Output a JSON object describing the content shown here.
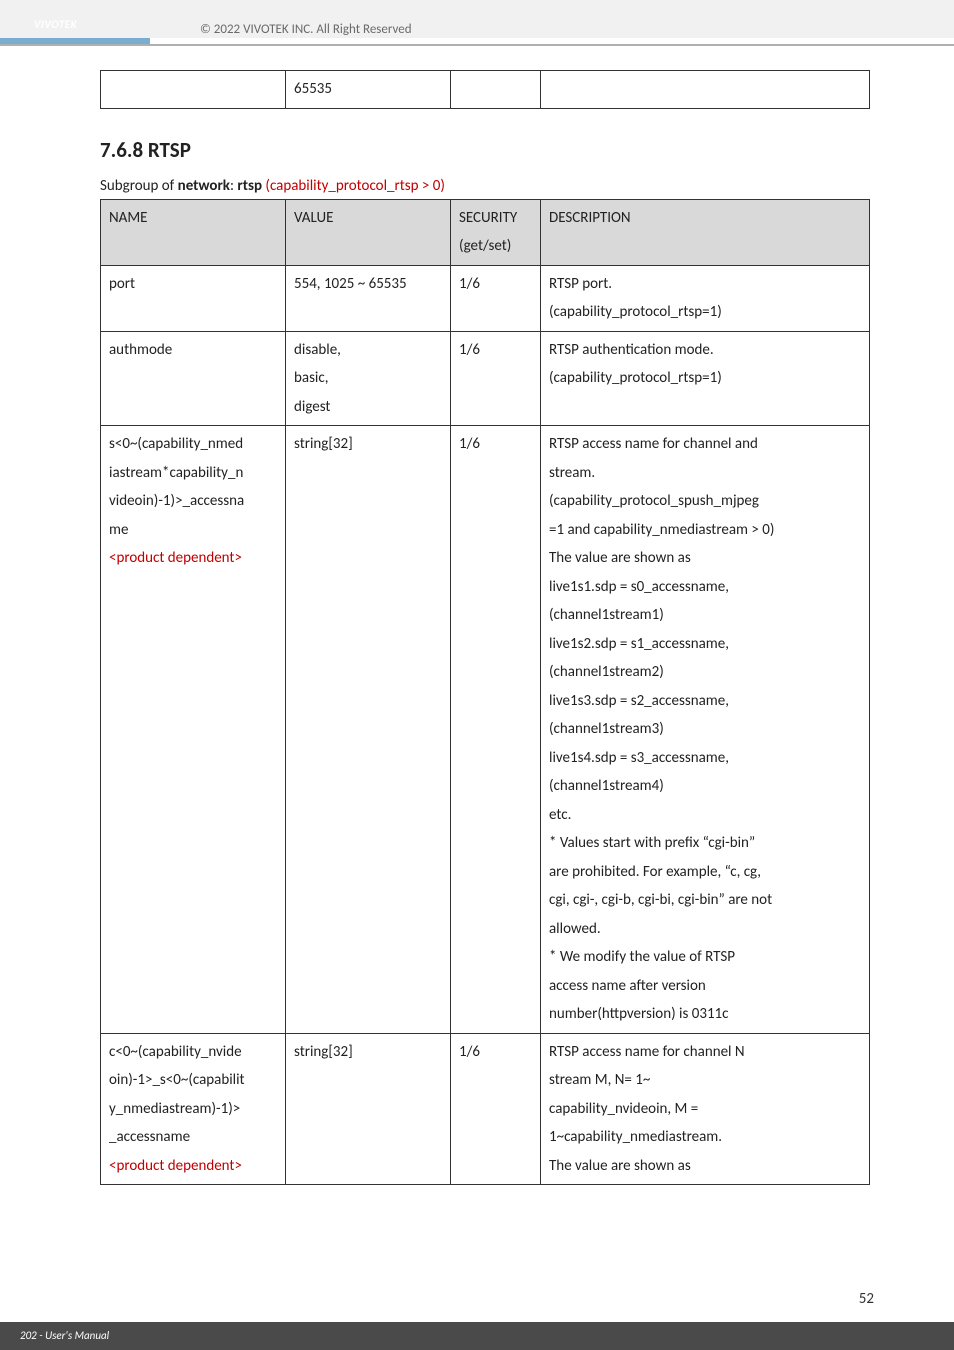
{
  "header": {
    "brand": "VIVOTEK",
    "copyright": "© 2022 VIVOTEK INC. All Right Reserved"
  },
  "top_table": {
    "cells": [
      "",
      "65535",
      "",
      ""
    ]
  },
  "section": {
    "heading": "7.6.8 RTSP",
    "subgroup_prefix": "Subgroup of ",
    "subgroup_bold1": "network",
    "subgroup_mid": ": ",
    "subgroup_bold2": "rtsp",
    "subgroup_red": " (capability_protocol_rtsp > 0)"
  },
  "main_table": {
    "headers": [
      "NAME",
      "VALUE",
      "SECURITY (get/set)",
      "DESCRIPTION"
    ],
    "rows": [
      {
        "name": "port",
        "value": "554, 1025 ~ 65535",
        "security": "1/6",
        "desc": "RTSP port.\n(capability_protocol_rtsp=1)"
      },
      {
        "name": "authmode",
        "value": "disable,\nbasic,\ndigest",
        "security": "1/6",
        "desc": "RTSP authentication mode.\n(capability_protocol_rtsp=1)"
      },
      {
        "name_lines": [
          {
            "t": "s<0~(capability_nmed",
            "red": false
          },
          {
            "t": "iastream*capability_n",
            "red": false
          },
          {
            "t": "videoin)-1)>_accessna",
            "red": false
          },
          {
            "t": "me",
            "red": false
          },
          {
            "t": "<product dependent>",
            "red": true
          }
        ],
        "value": "string[32]",
        "security": "1/6",
        "desc": "RTSP access name for channel and stream.\n(capability_protocol_spush_mjpeg =1 and capability_nmediastream > 0)\nThe value are shown as\nlive1s1.sdp = s0_accessname, (channel1stream1)\nlive1s2.sdp = s1_accessname, (channel1stream2)\nlive1s3.sdp = s2_accessname, (channel1stream3)\nlive1s4.sdp = s3_accessname, (channel1stream4)\netc.\n* Values start with prefix \"cgi-bin\" are prohibited. For example, \"c, cg, cgi, cgi-, cgi-b, cgi-bi, cgi-bin\" are not allowed.\n* We modify the value of RTSP access name after version number(httpversion) is 0311c"
      },
      {
        "name_lines": [
          {
            "t": "c<0~(capability_nvide",
            "red": false
          },
          {
            "t": "oin)-1>_s<0~(capabilit",
            "red": false
          },
          {
            "t": "y_nmediastream)-1)>",
            "red": false
          },
          {
            "t": "_accessname",
            "red": false
          },
          {
            "t": "<product dependent>",
            "red": true
          }
        ],
        "value": "string[32]",
        "security": "1/6",
        "desc": "RTSP access name for channel N stream M, N= 1~ capability_nvideoin, M = 1~capability_nmediastream.\nThe value are shown as"
      }
    ]
  },
  "footer": {
    "pagelabel": "202 - User's Manual",
    "pagenum": "52"
  }
}
